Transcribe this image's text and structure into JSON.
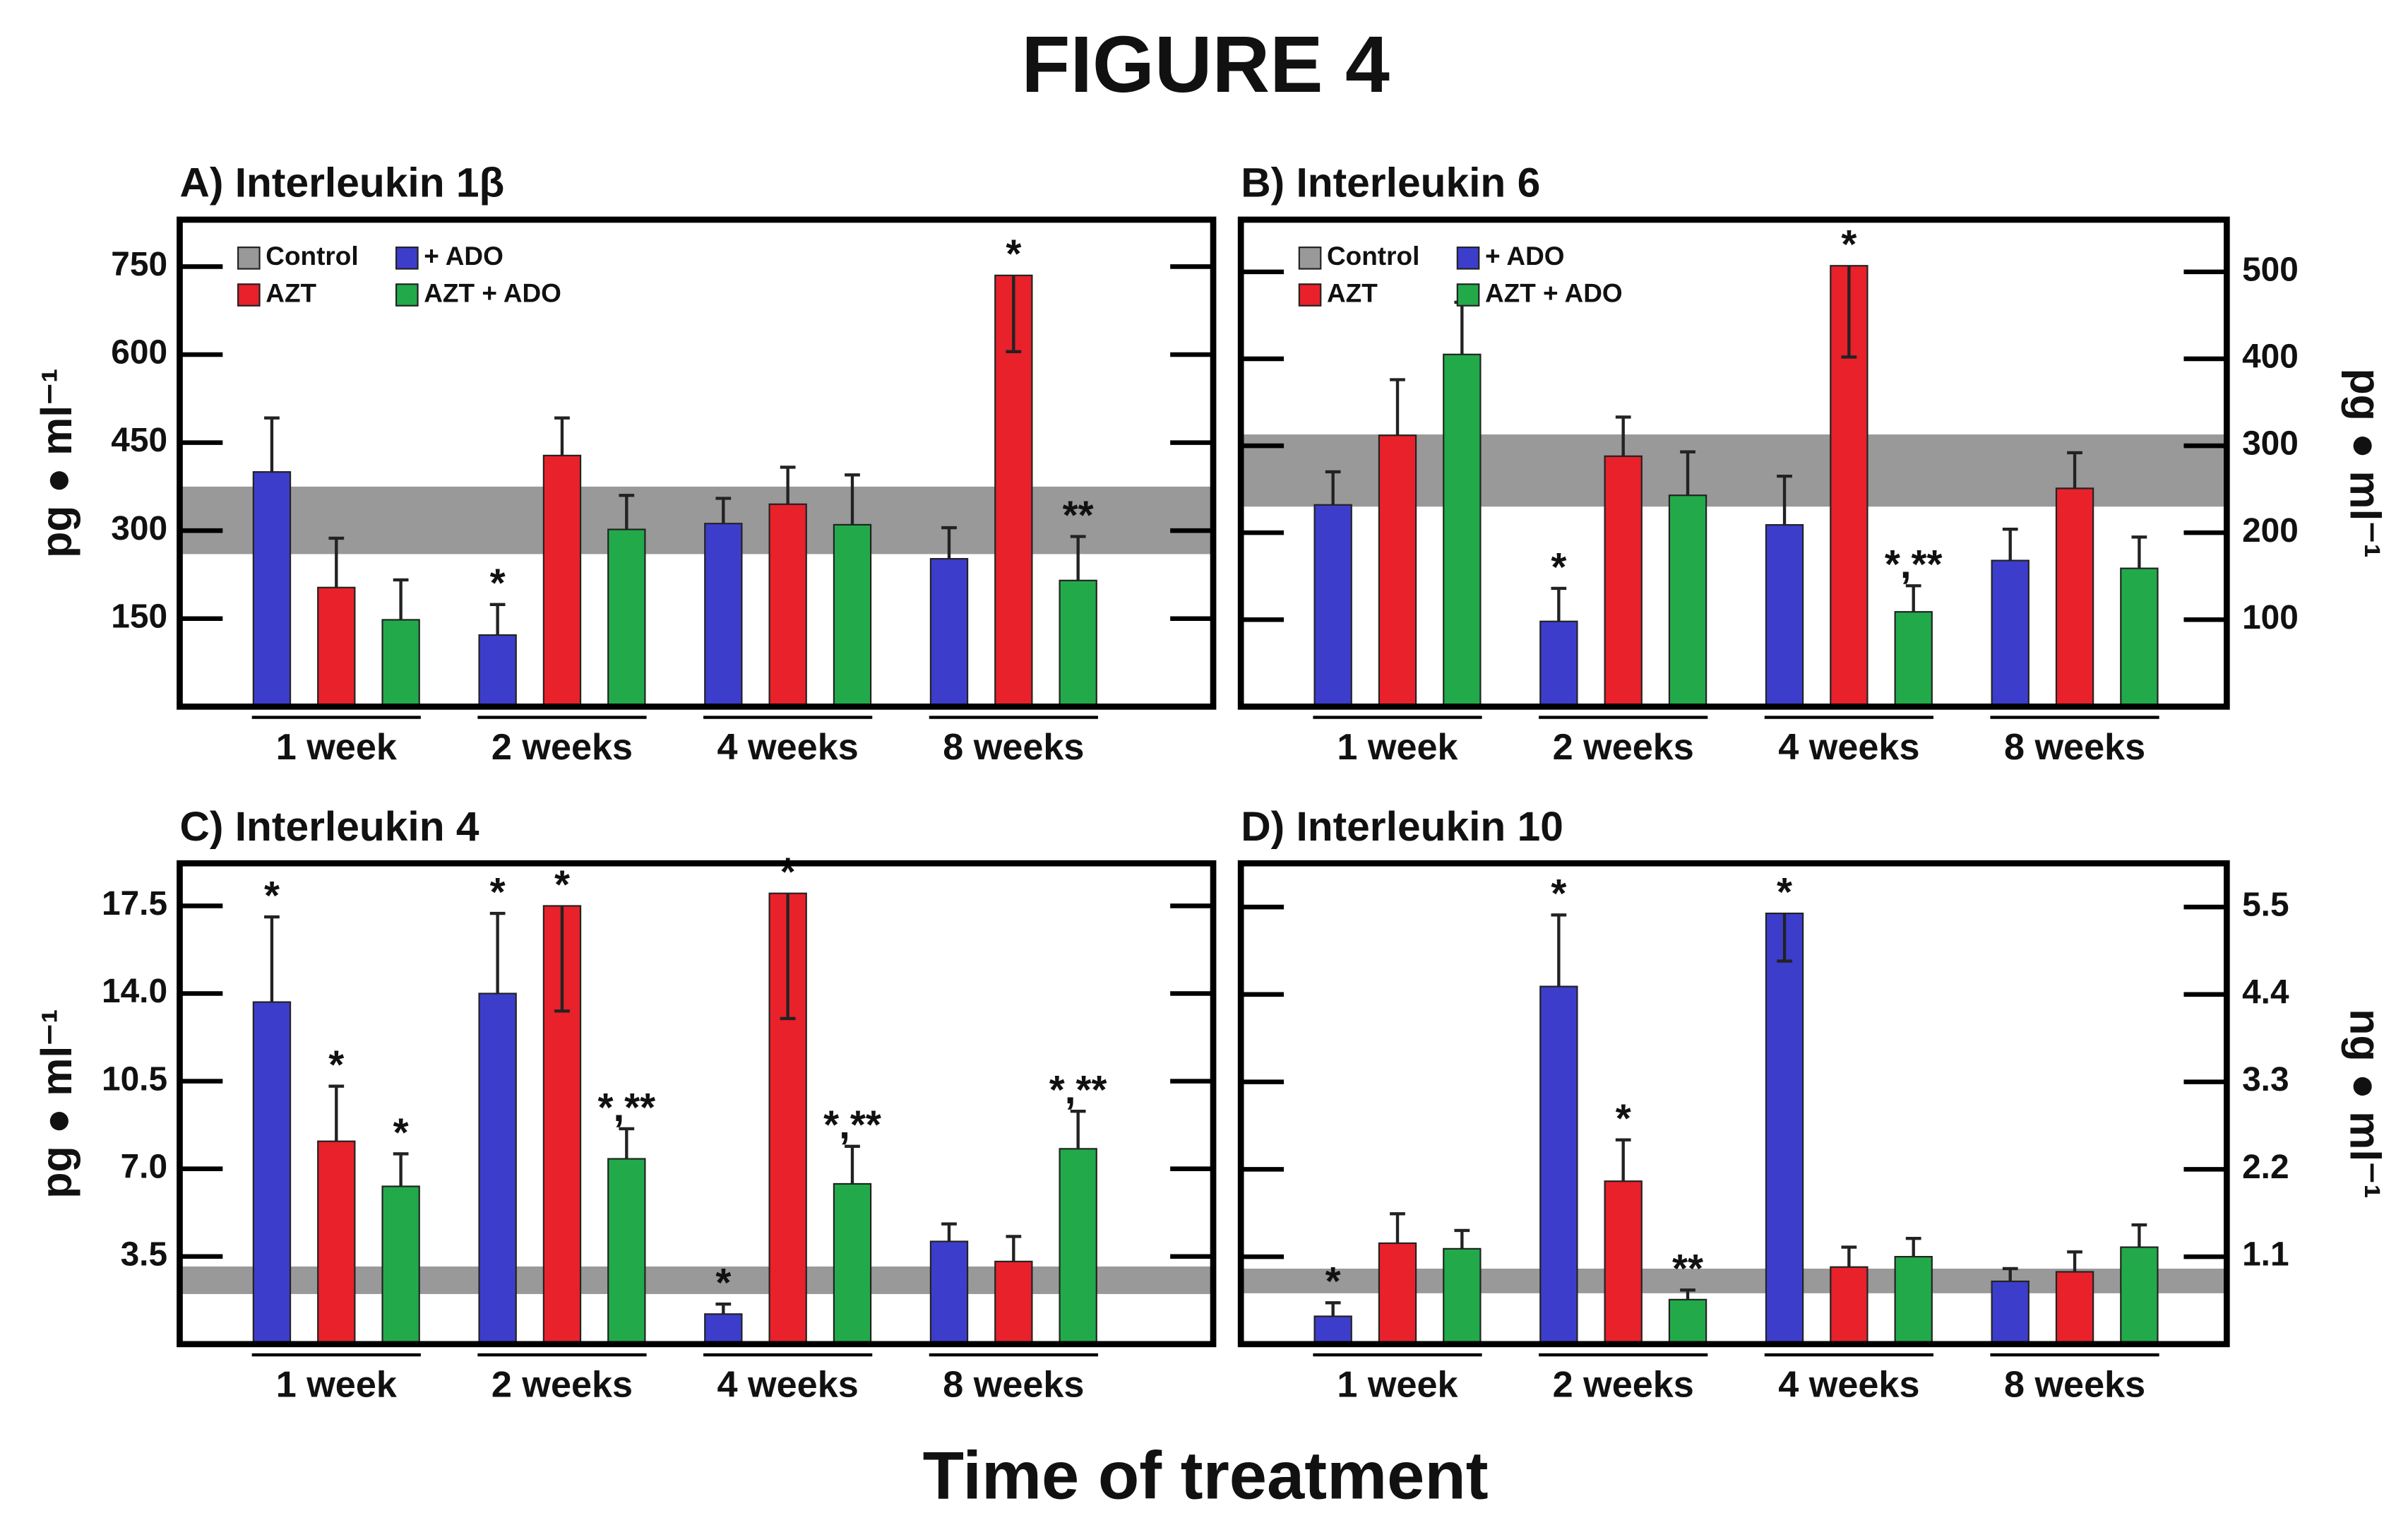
{
  "figure": {
    "title": "FIGURE 4",
    "xlabel": "Time of treatment"
  },
  "chart_data": [
    {
      "type": "bar",
      "title": "A) Interleukin 1β",
      "ylabel": "pg ● ml⁻¹",
      "yaxis_side": "left",
      "legend": true,
      "categories": [
        "1 week",
        "2 weeks",
        "4 weeks",
        "8 weeks"
      ],
      "ylim": [
        0,
        830
      ],
      "yticks": [
        150,
        300,
        450,
        600,
        750
      ],
      "control": {
        "name": "Control",
        "color": "#999999",
        "range": [
          260,
          375
        ]
      },
      "series": [
        {
          "name": "+ ADO",
          "color": "#3d3dcc",
          "values": [
            400,
            122,
            312,
            252
          ],
          "errors": [
            92,
            52,
            43,
            53
          ],
          "annotations": [
            null,
            "*",
            null,
            null
          ]
        },
        {
          "name": "AZT",
          "color": "#e8212b",
          "values": [
            203,
            428,
            345,
            735
          ],
          "errors": [
            84,
            64,
            63,
            130
          ],
          "annotations": [
            null,
            null,
            null,
            "*"
          ]
        },
        {
          "name": "AZT + ADO",
          "color": "#22aa4a",
          "values": [
            148,
            302,
            310,
            215
          ],
          "errors": [
            68,
            58,
            85,
            75
          ],
          "annotations": [
            null,
            null,
            null,
            "**"
          ]
        }
      ]
    },
    {
      "type": "bar",
      "title": "B) Interleukin 6",
      "ylabel": "pg ● ml⁻¹",
      "yaxis_side": "right",
      "legend": true,
      "categories": [
        "1 week",
        "2 weeks",
        "4 weeks",
        "8 weeks"
      ],
      "ylim": [
        0,
        560
      ],
      "yticks": [
        100,
        200,
        300,
        400,
        500
      ],
      "control": {
        "name": "Control",
        "color": "#999999",
        "range": [
          230,
          313
        ]
      },
      "series": [
        {
          "name": "+ ADO",
          "color": "#3d3dcc",
          "values": [
            232,
            98,
            209,
            168
          ],
          "errors": [
            38,
            38,
            56,
            36
          ],
          "annotations": [
            null,
            "*",
            null,
            null
          ]
        },
        {
          "name": "AZT",
          "color": "#e8212b",
          "values": [
            312,
            288,
            507,
            251
          ],
          "errors": [
            64,
            45,
            105,
            41
          ],
          "annotations": [
            null,
            null,
            "*",
            null
          ]
        },
        {
          "name": "AZT + ADO",
          "color": "#22aa4a",
          "values": [
            405,
            243,
            109,
            159
          ],
          "errors": [
            60,
            50,
            30,
            36
          ],
          "annotations": [
            null,
            null,
            "*,**",
            null
          ]
        }
      ]
    },
    {
      "type": "bar",
      "title": "C) Interleukin 4",
      "ylabel": "pg ● ml⁻¹",
      "yaxis_side": "left",
      "legend": false,
      "categories": [
        "1 week",
        "2 weeks",
        "4 weeks",
        "8 weeks"
      ],
      "ylim": [
        0,
        19.2
      ],
      "yticks": [
        3.5,
        {
          "value": 7,
          "label": "7.0"
        },
        10.5,
        {
          "value": 14,
          "label": "14.0"
        },
        17.5
      ],
      "control": {
        "color": "#999999",
        "range": [
          2.0,
          3.1
        ]
      },
      "series": [
        {
          "color": "#3d3dcc",
          "values": [
            13.66,
            14.0,
            1.2,
            4.1
          ],
          "errors": [
            3.4,
            3.2,
            0.4,
            0.7
          ],
          "annotations": [
            "*",
            "*",
            "*",
            null
          ]
        },
        {
          "color": "#e8212b",
          "values": [
            8.1,
            17.5,
            18.0,
            3.3
          ],
          "errors": [
            2.2,
            4.2,
            5.0,
            1.0
          ],
          "annotations": [
            "*",
            "*",
            "*",
            null
          ]
        },
        {
          "color": "#22aa4a",
          "values": [
            6.3,
            7.4,
            6.4,
            7.8
          ],
          "errors": [
            1.3,
            1.2,
            1.5,
            1.5
          ],
          "annotations": [
            "*",
            "*,**",
            "*,**",
            "*,**"
          ]
        }
      ]
    },
    {
      "type": "bar",
      "title": "D) Interleukin 10",
      "ylabel": "ng ● ml⁻¹",
      "yaxis_side": "right",
      "legend": false,
      "categories": [
        "1 week",
        "2 weeks",
        "4 weeks",
        "8 weeks"
      ],
      "ylim": [
        0,
        6.05
      ],
      "yticks": [
        1.1,
        2.2,
        3.3,
        4.4,
        5.5
      ],
      "control": {
        "color": "#999999",
        "range": [
          0.64,
          0.95
        ]
      },
      "series": [
        {
          "color": "#3d3dcc",
          "values": [
            0.35,
            4.5,
            5.42,
            0.79
          ],
          "errors": [
            0.17,
            0.9,
            0.6,
            0.16
          ],
          "annotations": [
            "*",
            "*",
            "*",
            null
          ]
        },
        {
          "color": "#e8212b",
          "values": [
            1.27,
            2.05,
            0.97,
            0.91
          ],
          "errors": [
            0.37,
            0.52,
            0.25,
            0.25
          ],
          "annotations": [
            null,
            "*",
            null,
            null
          ]
        },
        {
          "color": "#22aa4a",
          "values": [
            1.2,
            0.56,
            1.1,
            1.22
          ],
          "errors": [
            0.23,
            0.12,
            0.23,
            0.28
          ],
          "annotations": [
            null,
            "**",
            null,
            null
          ]
        }
      ]
    }
  ]
}
